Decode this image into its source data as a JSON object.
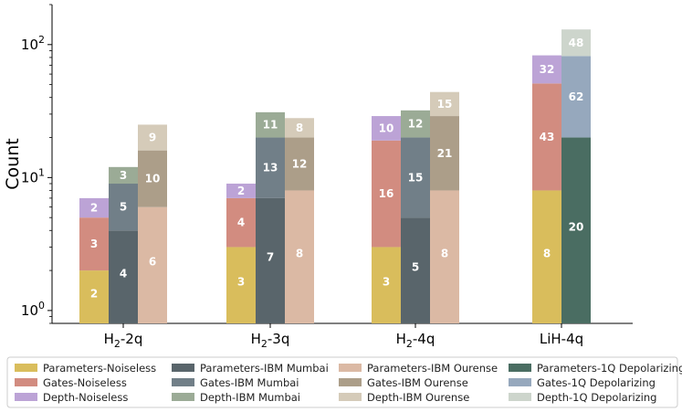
{
  "chart_data": {
    "type": "bar",
    "subtype": "stacked-grouped",
    "yscale": "log",
    "ylabel": "Count",
    "xlabel": "",
    "ylim": [
      0.8,
      200
    ],
    "y_ticks": [
      {
        "value": 1,
        "base": "10",
        "exp": "0"
      },
      {
        "value": 10,
        "base": "10",
        "exp": "1"
      },
      {
        "value": 100,
        "base": "10",
        "exp": "2"
      }
    ],
    "categories": [
      {
        "label": "H",
        "sub": "2",
        "suffix": "-2q"
      },
      {
        "label": "H",
        "sub": "2",
        "suffix": "-3q"
      },
      {
        "label": "H",
        "sub": "2",
        "suffix": "-4q"
      },
      {
        "label": "LiH-4q",
        "sub": "",
        "suffix": ""
      }
    ],
    "backends": [
      "Noiseless",
      "IBM Mumbai",
      "IBM Ourense",
      "1Q Depolarizing"
    ],
    "metrics": [
      "Parameters",
      "Gates",
      "Depth"
    ],
    "values": {
      "Noiseless": [
        [
          2,
          3,
          2
        ],
        [
          3,
          4,
          2
        ],
        [
          3,
          16,
          10
        ],
        null
      ],
      "IBM Mumbai": [
        [
          4,
          5,
          3
        ],
        [
          7,
          13,
          11
        ],
        [
          5,
          15,
          12
        ],
        null
      ],
      "IBM Ourense": [
        [
          6,
          10,
          9
        ],
        [
          8,
          12,
          8
        ],
        [
          8,
          21,
          15
        ],
        null
      ],
      "1Q Depolarizing": [
        null,
        null,
        null,
        [
          20,
          62,
          48
        ]
      ]
    },
    "lih_noiseless": [
      8,
      43,
      32
    ],
    "colors": {
      "Noiseless": [
        "#d9bd5c",
        "#d28c80",
        "#bca3d6"
      ],
      "IBM Mumbai": [
        "#59656b",
        "#717f88",
        "#9bab96"
      ],
      "IBM Ourense": [
        "#dbb9a4",
        "#ac9e89",
        "#d5cbb9"
      ],
      "1Q Depolarizing": [
        "#4a6d62",
        "#96a8bd",
        "#cdd5cc"
      ]
    },
    "legend": [
      [
        "Parameters-Noiseless",
        "Gates-Noiseless",
        "Depth-Noiseless"
      ],
      [
        "Parameters-IBM Mumbai",
        "Gates-IBM Mumbai",
        "Depth-IBM Mumbai"
      ],
      [
        "Parameters-IBM Ourense",
        "Gates-IBM Ourense",
        "Depth-IBM Ourense"
      ],
      [
        "Parameters-1Q Depolarizing",
        "Gates-1Q Depolarizing",
        "Depth-1Q Depolarizing"
      ]
    ],
    "legend_position": "bottom"
  }
}
